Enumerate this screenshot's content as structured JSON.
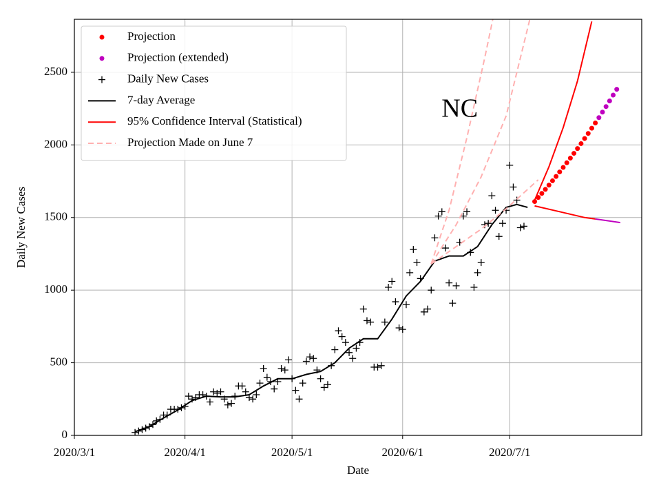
{
  "chart_data": {
    "type": "scatter",
    "xlabel": "Date",
    "ylabel": "Daily New Cases",
    "annotation": {
      "text": "NC",
      "x": "2020/6/17",
      "y": 2235
    },
    "xlim": [
      "2020/3/1",
      "2020/8/7"
    ],
    "xticks": [
      "2020/3/1",
      "2020/4/1",
      "2020/5/1",
      "2020/6/1",
      "2020/7/1"
    ],
    "ylim": [
      0,
      2865
    ],
    "yticks": [
      0,
      500,
      1000,
      1500,
      2000,
      2500
    ],
    "grid": true,
    "legend": "upper left",
    "series": [
      {
        "name": "Projection",
        "color": "#ff0000",
        "style": "dots",
        "x": [
          "2020/7/8",
          "2020/7/9",
          "2020/7/10",
          "2020/7/11",
          "2020/7/12",
          "2020/7/13",
          "2020/7/14",
          "2020/7/15",
          "2020/7/16",
          "2020/7/17",
          "2020/7/18",
          "2020/7/19",
          "2020/7/20",
          "2020/7/21",
          "2020/7/22",
          "2020/7/23",
          "2020/7/24",
          "2020/7/25"
        ],
        "values": [
          1610,
          1638,
          1666,
          1694,
          1723,
          1753,
          1783,
          1814,
          1845,
          1877,
          1909,
          1942,
          1975,
          2009,
          2044,
          2079,
          2115,
          2151
        ]
      },
      {
        "name": "Projection (extended)",
        "color": "#bf00bf",
        "style": "dots",
        "x": [
          "2020/7/26",
          "2020/7/27",
          "2020/7/28",
          "2020/7/29",
          "2020/7/30",
          "2020/7/31"
        ],
        "values": [
          2188,
          2226,
          2264,
          2303,
          2343,
          2383
        ]
      },
      {
        "name": "Daily New Cases",
        "color": "#000000",
        "style": "plus",
        "x": [
          "2020/3/18",
          "2020/3/19",
          "2020/3/20",
          "2020/3/21",
          "2020/3/22",
          "2020/3/23",
          "2020/3/24",
          "2020/3/25",
          "2020/3/26",
          "2020/3/27",
          "2020/3/28",
          "2020/3/29",
          "2020/3/30",
          "2020/3/31",
          "2020/4/1",
          "2020/4/2",
          "2020/4/3",
          "2020/4/4",
          "2020/4/5",
          "2020/4/6",
          "2020/4/7",
          "2020/4/8",
          "2020/4/9",
          "2020/4/10",
          "2020/4/11",
          "2020/4/12",
          "2020/4/13",
          "2020/4/14",
          "2020/4/15",
          "2020/4/16",
          "2020/4/17",
          "2020/4/18",
          "2020/4/19",
          "2020/4/20",
          "2020/4/21",
          "2020/4/22",
          "2020/4/23",
          "2020/4/24",
          "2020/4/25",
          "2020/4/26",
          "2020/4/27",
          "2020/4/28",
          "2020/4/29",
          "2020/4/30",
          "2020/5/1",
          "2020/5/2",
          "2020/5/3",
          "2020/5/4",
          "2020/5/5",
          "2020/5/6",
          "2020/5/7",
          "2020/5/8",
          "2020/5/9",
          "2020/5/10",
          "2020/5/11",
          "2020/5/12",
          "2020/5/13",
          "2020/5/14",
          "2020/5/15",
          "2020/5/16",
          "2020/5/17",
          "2020/5/18",
          "2020/5/19",
          "2020/5/20",
          "2020/5/21",
          "2020/5/22",
          "2020/5/23",
          "2020/5/24",
          "2020/5/25",
          "2020/5/26",
          "2020/5/27",
          "2020/5/28",
          "2020/5/29",
          "2020/5/30",
          "2020/5/31",
          "2020/6/1",
          "2020/6/2",
          "2020/6/3",
          "2020/6/4",
          "2020/6/5",
          "2020/6/6",
          "2020/6/7",
          "2020/6/8",
          "2020/6/9",
          "2020/6/10",
          "2020/6/11",
          "2020/6/12",
          "2020/6/13",
          "2020/6/14",
          "2020/6/15",
          "2020/6/16",
          "2020/6/17",
          "2020/6/18",
          "2020/6/19",
          "2020/6/20",
          "2020/6/21",
          "2020/6/22",
          "2020/6/23",
          "2020/6/24",
          "2020/6/25",
          "2020/6/26",
          "2020/6/27",
          "2020/6/28",
          "2020/6/29",
          "2020/6/30",
          "2020/7/1",
          "2020/7/2",
          "2020/7/3",
          "2020/7/4",
          "2020/7/5"
        ],
        "values": [
          20,
          30,
          40,
          50,
          60,
          75,
          100,
          110,
          140,
          140,
          180,
          180,
          180,
          190,
          200,
          270,
          250,
          260,
          280,
          280,
          270,
          230,
          300,
          290,
          300,
          250,
          210,
          220,
          270,
          340,
          340,
          300,
          260,
          250,
          280,
          360,
          460,
          400,
          370,
          320,
          370,
          460,
          450,
          520,
          390,
          310,
          250,
          360,
          510,
          540,
          530,
          450,
          390,
          330,
          350,
          480,
          590,
          720,
          680,
          640,
          570,
          530,
          600,
          640,
          870,
          790,
          780,
          470,
          470,
          480,
          780,
          1020,
          1060,
          920,
          740,
          730,
          900,
          1120,
          1280,
          1190,
          1080,
          850,
          870,
          1000,
          1360,
          1510,
          1540,
          1290,
          1050,
          910,
          1030,
          1330,
          1510,
          1540,
          1260,
          1020,
          1120,
          1190,
          1450,
          1460,
          1650,
          1550,
          1370,
          1460,
          1550,
          1860,
          1710,
          1620,
          1430,
          1440
        ]
      },
      {
        "name": "7-day Average",
        "color": "#000000",
        "style": "line",
        "x": [
          "2020/3/18",
          "2020/3/22",
          "2020/3/26",
          "2020/3/30",
          "2020/4/3",
          "2020/4/7",
          "2020/4/11",
          "2020/4/15",
          "2020/4/19",
          "2020/4/23",
          "2020/4/27",
          "2020/5/1",
          "2020/5/5",
          "2020/5/9",
          "2020/5/13",
          "2020/5/17",
          "2020/5/21",
          "2020/5/25",
          "2020/5/29",
          "2020/6/2",
          "2020/6/6",
          "2020/6/10",
          "2020/6/14",
          "2020/6/18",
          "2020/6/22",
          "2020/6/26",
          "2020/6/30",
          "2020/7/3",
          "2020/7/6"
        ],
        "values": [
          25,
          60,
          120,
          175,
          240,
          270,
          265,
          265,
          280,
          340,
          390,
          390,
          420,
          440,
          500,
          600,
          665,
          665,
          800,
          960,
          1060,
          1200,
          1235,
          1235,
          1300,
          1450,
          1570,
          1590,
          1570
        ]
      },
      {
        "name": "95% Confidence Interval (Statistical)",
        "color": "#ff0000",
        "style": "line",
        "x": [
          "2020/7/8",
          "2020/7/12",
          "2020/7/16",
          "2020/7/20",
          "2020/7/24"
        ],
        "values": [
          1620,
          1850,
          2120,
          2440,
          2850
        ]
      },
      {
        "name": "Projection Made on June 7",
        "color": "#ffb0b0",
        "style": "dashed",
        "x": [
          "2020/6/9",
          "2020/6/14",
          "2020/6/19",
          "2020/6/24",
          "2020/6/27"
        ],
        "values": [
          1180,
          1550,
          2050,
          2600,
          2950
        ]
      },
      {
        "color": "#ff0000",
        "style": "line",
        "x": [
          "2020/7/8",
          "2020/7/15",
          "2020/7/22",
          "2020/7/25"
        ],
        "values": [
          1580,
          1540,
          1500,
          1490
        ]
      },
      {
        "color": "#bf00bf",
        "style": "line",
        "x": [
          "2020/7/25",
          "2020/8/1"
        ],
        "values": [
          1490,
          1465
        ]
      },
      {
        "color": "#ffb0b0",
        "style": "dashed",
        "x": [
          "2020/6/9",
          "2020/6/16",
          "2020/6/23",
          "2020/6/30",
          "2020/7/4",
          "2020/7/7"
        ],
        "values": [
          1180,
          1450,
          1780,
          2200,
          2600,
          2900
        ]
      },
      {
        "color": "#ffb0b0",
        "style": "dashed",
        "x": [
          "2020/6/9",
          "2020/6/16",
          "2020/6/23",
          "2020/6/30",
          "2020/7/9"
        ],
        "values": [
          1180,
          1300,
          1420,
          1560,
          1760
        ]
      }
    ]
  }
}
